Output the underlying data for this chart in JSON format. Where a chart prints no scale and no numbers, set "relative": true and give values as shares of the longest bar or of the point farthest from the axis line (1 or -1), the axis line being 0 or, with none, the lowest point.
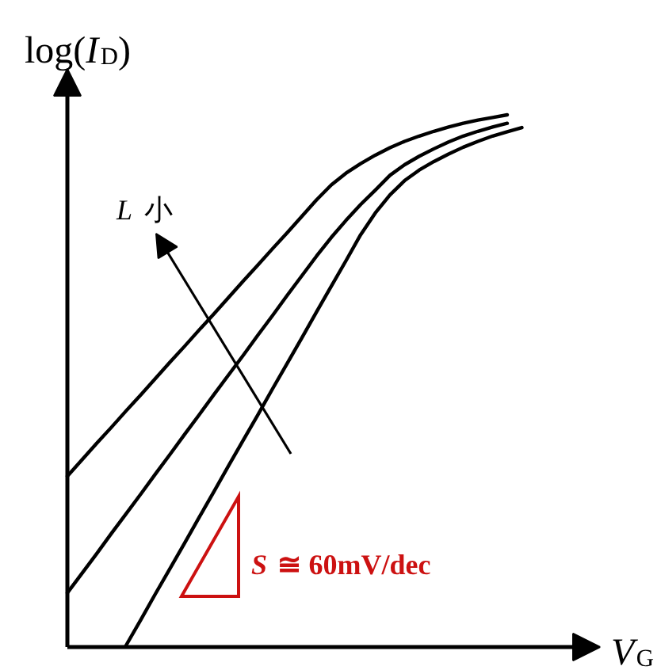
{
  "chart_data": {
    "type": "line",
    "xlabel": "V$_{G}$",
    "ylabel": "log(I$_{D}$)",
    "relative": true,
    "categories": [
      null,
      null,
      null,
      null,
      null,
      null,
      null,
      null,
      null,
      null,
      null,
      null,
      null,
      null,
      null,
      null,
      null,
      null,
      null,
      null,
      null,
      null,
      null,
      null,
      null,
      null,
      null,
      null,
      null,
      null,
      null,
      null
    ],
    "series": [
      {
        "color": "#000000",
        "values": [
          0.319,
          0.35,
          0.381,
          0.411,
          0.442,
          0.472,
          0.503,
          0.534,
          0.564,
          0.595,
          0.625,
          0.656,
          0.687,
          0.717,
          0.748,
          0.778,
          0.809,
          0.84,
          0.868,
          0.89,
          0.908,
          0.924,
          0.938,
          0.95,
          0.96,
          0.969,
          0.977,
          0.984,
          0.99,
          0.995,
          1.0,
          null
        ]
      },
      {
        "color": "#000000",
        "values": [
          0.099,
          0.136,
          0.173,
          0.211,
          0.248,
          0.285,
          0.323,
          0.36,
          0.398,
          0.435,
          0.473,
          0.51,
          0.547,
          0.585,
          0.622,
          0.66,
          0.697,
          0.734,
          0.769,
          0.801,
          0.831,
          0.858,
          0.886,
          0.906,
          0.922,
          0.936,
          0.949,
          0.96,
          0.969,
          0.977,
          0.984,
          null
        ]
      },
      {
        "color": "#000000",
        "values": [
          null,
          null,
          null,
          null,
          0.0,
          0.048,
          0.097,
          0.145,
          0.193,
          0.242,
          0.29,
          0.339,
          0.387,
          0.435,
          0.484,
          0.532,
          0.58,
          0.629,
          0.677,
          0.725,
          0.774,
          0.815,
          0.849,
          0.876,
          0.896,
          0.912,
          0.926,
          0.939,
          0.95,
          0.96,
          0.968,
          0.976
        ]
      }
    ],
    "annotations": [
      "L 小",
      "S ≅ 60mV/dec"
    ]
  }
}
